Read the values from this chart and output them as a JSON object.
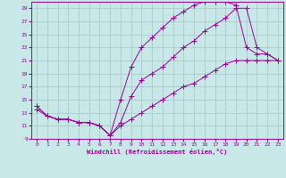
{
  "xlabel": "Windchill (Refroidissement éolien,°C)",
  "bg_color": "#c8e8e8",
  "line_color": "#990099",
  "grid_color": "#aacccc",
  "xlim": [
    -0.5,
    23.5
  ],
  "ylim": [
    9,
    30
  ],
  "xticks": [
    0,
    1,
    2,
    3,
    4,
    5,
    6,
    7,
    8,
    9,
    10,
    11,
    12,
    13,
    14,
    15,
    16,
    17,
    18,
    19,
    20,
    21,
    22,
    23
  ],
  "yticks": [
    9,
    11,
    13,
    15,
    17,
    19,
    21,
    23,
    25,
    27,
    29
  ],
  "line1_x": [
    0,
    1,
    2,
    3,
    4,
    5,
    6,
    7,
    8,
    9,
    10,
    11,
    12,
    13,
    14,
    15,
    16,
    17,
    18,
    19,
    20,
    21,
    22,
    23
  ],
  "line1_y": [
    14,
    12.5,
    12,
    12,
    11.5,
    11.5,
    11,
    9.5,
    15,
    20,
    23,
    24.5,
    26,
    27.5,
    28.5,
    29.5,
    30,
    30,
    30,
    29.5,
    23,
    22,
    22,
    21
  ],
  "line2_x": [
    0,
    1,
    2,
    3,
    4,
    5,
    6,
    7,
    8,
    9,
    10,
    11,
    12,
    13,
    14,
    15,
    16,
    17,
    18,
    19,
    20,
    21,
    22,
    23
  ],
  "line2_y": [
    14,
    12.5,
    12,
    12,
    11.5,
    11.5,
    11,
    9.5,
    11.5,
    15.5,
    18,
    19,
    20,
    21.5,
    23,
    24,
    25.5,
    26.5,
    27.5,
    29,
    29,
    23,
    22,
    21
  ],
  "line3_x": [
    0,
    1,
    2,
    3,
    4,
    5,
    6,
    7,
    8,
    9,
    10,
    11,
    12,
    13,
    14,
    15,
    16,
    17,
    18,
    19,
    20,
    21,
    22,
    23
  ],
  "line3_y": [
    13.5,
    12.5,
    12,
    12,
    11.5,
    11.5,
    11,
    9.5,
    11,
    12,
    13,
    14,
    15,
    16,
    17,
    17.5,
    18.5,
    19.5,
    20.5,
    21,
    21,
    21,
    21,
    21
  ]
}
